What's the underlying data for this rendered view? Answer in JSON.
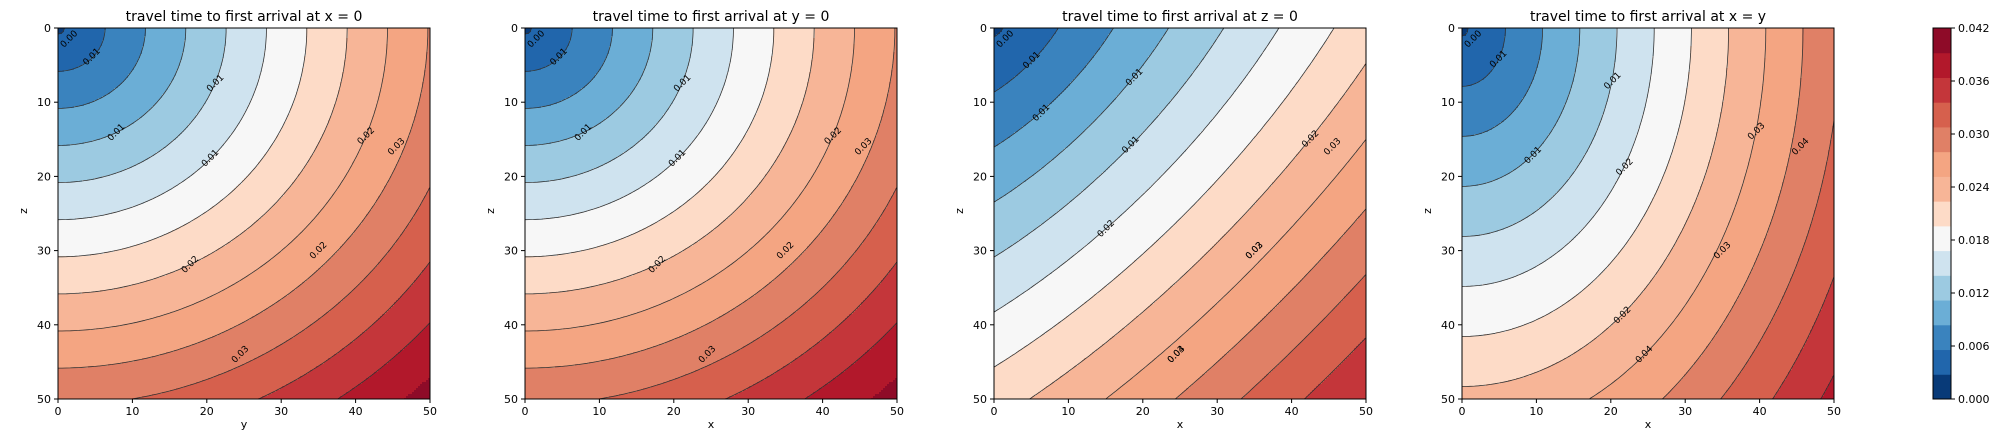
{
  "figure": {
    "panels": [
      {
        "title": "travel time to first arrival at x = 0",
        "xlabel": "y",
        "ylabel": "z"
      },
      {
        "title": "travel time to first arrival at y = 0",
        "xlabel": "x",
        "ylabel": "z"
      },
      {
        "title": "travel time to first arrival at z = 0",
        "xlabel": "x",
        "ylabel": "z"
      },
      {
        "title": "travel time to first arrival at x = y",
        "xlabel": "x",
        "ylabel": "z"
      }
    ]
  },
  "chart_data": {
    "type": "heatmap",
    "subtype": "filled contour",
    "colormap": "RdBu_r",
    "xlim": [
      0,
      50
    ],
    "ylim": [
      50,
      0
    ],
    "y_axis_inverted": true,
    "xticks": [
      0,
      10,
      20,
      30,
      40,
      50
    ],
    "yticks": [
      0,
      10,
      20,
      30,
      40,
      50
    ],
    "contour_levels": [
      0.0,
      0.003,
      0.006,
      0.009,
      0.012,
      0.015,
      0.018,
      0.021,
      0.024,
      0.027,
      0.03,
      0.033,
      0.036,
      0.039,
      0.042
    ],
    "colorbar": {
      "ticks": [
        "0.000",
        "0.006",
        "0.012",
        "0.018",
        "0.024",
        "0.030",
        "0.036",
        "0.042"
      ],
      "colors": [
        "#083a78",
        "#2166ac",
        "#3a83be",
        "#6baed6",
        "#9ccae1",
        "#cfe3ef",
        "#f7f7f7",
        "#fddbc7",
        "#f7b597",
        "#f4a582",
        "#e08066",
        "#d6604d",
        "#c4363a",
        "#b2182b",
        "#8e0b28"
      ]
    },
    "panels": [
      {
        "title": "travel time to first arrival at x = 0",
        "xlabel": "y",
        "ylabel": "z",
        "labels": [
          "0.00",
          "0.01",
          "0.01",
          "0.01",
          "0.01",
          "0.02",
          "0.02",
          "0.02",
          "0.03",
          "0.03"
        ]
      },
      {
        "title": "travel time to first arrival at y = 0",
        "xlabel": "x",
        "ylabel": "z",
        "labels": [
          "0.00",
          "0.01",
          "0.01",
          "0.01",
          "0.01",
          "0.02",
          "0.02",
          "0.02",
          "0.03",
          "0.03"
        ]
      },
      {
        "title": "travel time to first arrival at z = 0",
        "xlabel": "x",
        "ylabel": "z",
        "labels": [
          "0.00",
          "0.01",
          "0.01",
          "0.01",
          "0.01",
          "0.02",
          "0.02",
          "0.02",
          "0.03",
          "0.03",
          "0.03",
          "0.04"
        ]
      },
      {
        "title": "travel time to first arrival at x = y",
        "xlabel": "x",
        "ylabel": "z",
        "labels": [
          "0.00",
          "0.01",
          "0.01",
          "0.01",
          "0.02",
          "0.02",
          "0.03",
          "0.03",
          "0.04",
          "0.04"
        ]
      }
    ]
  }
}
